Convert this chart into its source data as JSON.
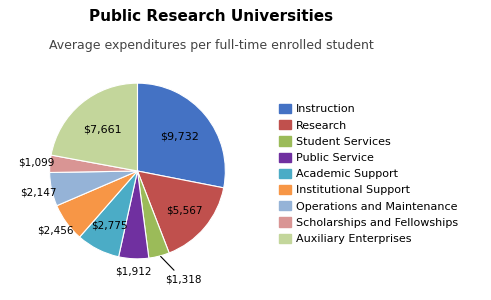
{
  "title": "Public Research Universities",
  "subtitle": "Average expenditures per full-time enrolled student",
  "labels": [
    "Instruction",
    "Research",
    "Student Services",
    "Public Service",
    "Academic Support",
    "Institutional Support",
    "Operations and Maintenance",
    "Scholarships and Fellowships",
    "Auxiliary Enterprises"
  ],
  "values": [
    9732,
    5567,
    1318,
    1912,
    2775,
    2456,
    2147,
    1099,
    7661
  ],
  "colors": [
    "#4472C4",
    "#C0504D",
    "#9BBB59",
    "#7030A0",
    "#4BACC6",
    "#F79646",
    "#95B3D7",
    "#D99594",
    "#C3D69B"
  ],
  "label_values": [
    "$9,732",
    "$5,567",
    "$1,318",
    "$1,912",
    "$2,775",
    "$2,456",
    "$2,147",
    "$1,099",
    "$7,661"
  ],
  "title_fontsize": 11,
  "subtitle_fontsize": 9,
  "legend_fontsize": 8
}
